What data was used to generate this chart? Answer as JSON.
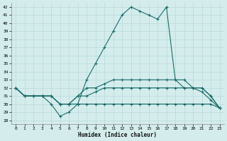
{
  "background_color": "#d4edec",
  "grid_color": "#b8d8d8",
  "line_color": "#1a6b6b",
  "x_label": "Humidex (Indice chaleur)",
  "ylim": [
    27.5,
    42.5
  ],
  "xlim": [
    -0.5,
    23.5
  ],
  "yticks": [
    28,
    29,
    30,
    31,
    32,
    33,
    34,
    35,
    36,
    37,
    38,
    39,
    40,
    41,
    42
  ],
  "xticks": [
    0,
    1,
    2,
    3,
    4,
    5,
    6,
    7,
    8,
    9,
    10,
    11,
    12,
    13,
    14,
    15,
    16,
    17,
    18,
    19,
    20,
    21,
    22,
    23
  ],
  "series": {
    "main": [
      32,
      31,
      31,
      31,
      30,
      28.5,
      29,
      30,
      33,
      35,
      37,
      39,
      41,
      42,
      41.5,
      41,
      40.5,
      42,
      33,
      32,
      32,
      31.5,
      30.5,
      29.5
    ],
    "line2": [
      32,
      31,
      31,
      31,
      31,
      30,
      30,
      31,
      32,
      32,
      32.5,
      33,
      33,
      33,
      33,
      33,
      33,
      33,
      33,
      33,
      32,
      32,
      31,
      29.5
    ],
    "line3": [
      32,
      31,
      31,
      31,
      31,
      30,
      30,
      31,
      31,
      31.5,
      32,
      32,
      32,
      32,
      32,
      32,
      32,
      32,
      32,
      32,
      32,
      32,
      31,
      29.5
    ],
    "line4": [
      32,
      31,
      31,
      31,
      31,
      30,
      30,
      30,
      30,
      30,
      30,
      30,
      30,
      30,
      30,
      30,
      30,
      30,
      30,
      30,
      30,
      30,
      30,
      29.5
    ]
  }
}
